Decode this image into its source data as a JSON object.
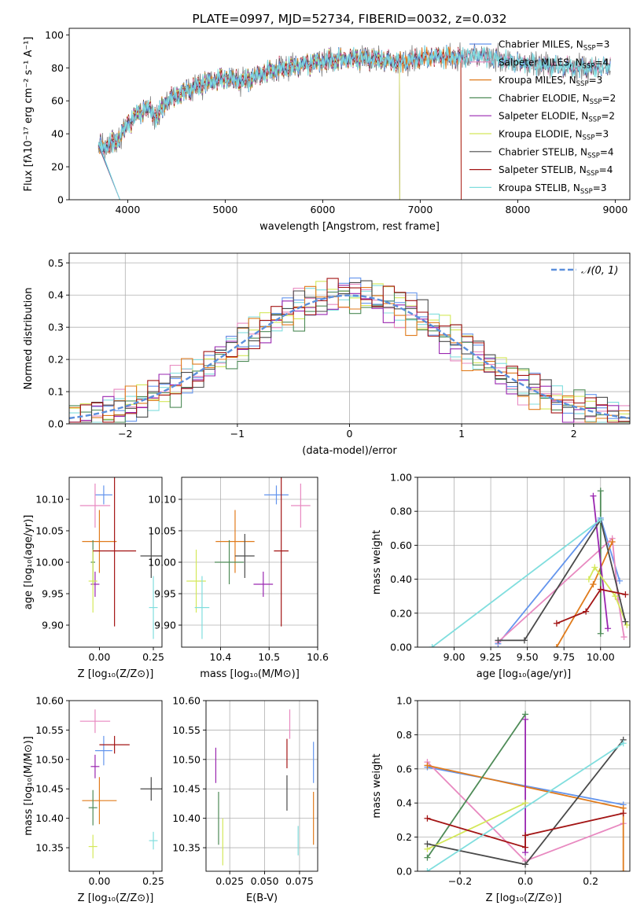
{
  "figure_title": "PLATE=0997, MJD=52734, FIBERID=0032, z=0.032",
  "colors": {
    "chabrier_miles": "#6495ed",
    "salpeter_miles": "#e889c0",
    "kroupa_miles": "#e07b1c",
    "chabrier_elodie": "#4e8b57",
    "salpeter_elodie": "#9a27b0",
    "kroupa_elodie": "#d4e85a",
    "chabrier_stelib": "#4a4a4a",
    "salpeter_stelib": "#a31515",
    "kroupa_stelib": "#80dede",
    "spectrum_data": "#808080",
    "normal_curve": "#5b8fdc"
  },
  "chart_data": [
    {
      "id": "spectrum",
      "type": "line",
      "title": "PLATE=0997, MJD=52734, FIBERID=0032, z=0.032",
      "xlabel": "wavelength [Angstrom, rest frame]",
      "ylabel": "Flux [fλ10⁻¹⁷ erg cm⁻² s⁻¹ A⁻¹]",
      "xlim": [
        3400,
        9150
      ],
      "ylim": [
        0,
        104
      ],
      "xticks": [
        4000,
        5000,
        6000,
        7000,
        8000,
        9000
      ],
      "yticks": [
        0,
        20,
        40,
        60,
        80,
        100
      ],
      "grid": false,
      "legend_position": "top-right",
      "continuum": {
        "x": [
          3700,
          3800,
          3900,
          4000,
          4100,
          4200,
          4300,
          4400,
          4600,
          4800,
          5000,
          5200,
          5400,
          5600,
          5800,
          6000,
          6200,
          6400,
          6600,
          6800,
          7000,
          7200,
          7400,
          7600,
          7800,
          8000,
          8200,
          8400,
          8600,
          8800,
          8950
        ],
        "y": [
          32,
          33,
          36,
          46,
          52,
          56,
          50,
          60,
          66,
          71,
          74,
          72,
          77,
          80,
          82,
          84,
          85,
          86,
          85,
          83,
          86,
          87,
          86,
          88,
          85,
          83,
          82,
          81,
          80,
          80,
          81
        ]
      },
      "series": [
        {
          "name": "Chabrier MILES, N_SSP=3",
          "color_key": "chabrier_miles",
          "end_x": 8950
        },
        {
          "name": "Salpeter MILES, N_SSP=4",
          "color_key": "salpeter_miles",
          "end_x": 8950
        },
        {
          "name": "Kroupa MILES, N_SSP=3",
          "color_key": "kroupa_miles",
          "end_x": 7420
        },
        {
          "name": "Chabrier ELODIE, N_SSP=2",
          "color_key": "chabrier_elodie",
          "end_x": 6790
        },
        {
          "name": "Salpeter ELODIE, N_SSP=2",
          "color_key": "salpeter_elodie",
          "end_x": 6790
        },
        {
          "name": "Kroupa ELODIE, N_SSP=3",
          "color_key": "kroupa_elodie",
          "end_x": 6790
        },
        {
          "name": "Chabrier STELIB, N_SSP=4",
          "color_key": "chabrier_stelib",
          "end_x": 8950
        },
        {
          "name": "Salpeter STELIB, N_SSP=4",
          "color_key": "salpeter_stelib",
          "end_x": 7420
        },
        {
          "name": "Kroupa STELIB, N_SSP=3",
          "color_key": "kroupa_stelib",
          "end_x": 8950
        }
      ]
    },
    {
      "id": "residuals",
      "type": "line",
      "title": "",
      "xlabel": "(data-model)/error",
      "ylabel": "Normed distribution",
      "xlim": [
        -2.5,
        2.5
      ],
      "ylim": [
        0,
        0.53
      ],
      "xticks": [
        -2,
        -1,
        0,
        1,
        2
      ],
      "yticks": [
        0.0,
        0.1,
        0.2,
        0.3,
        0.4,
        0.5
      ],
      "grid": true,
      "legend_position": "top-right",
      "legend_label": "𝒩(0, 1)",
      "bin_width": 0.1,
      "normal_curve": {
        "mean": 0,
        "sigma": 1
      }
    },
    {
      "id": "age_vs_z",
      "type": "scatter",
      "title": "",
      "xlabel": "Z [log₁₀(Z/Z⊙)]",
      "ylabel": "age  [log₁₀(age/yr)]",
      "xlim": [
        -0.14,
        0.29
      ],
      "ylim": [
        9.865,
        10.135
      ],
      "xticks": [
        0.0,
        0.25
      ],
      "yticks": [
        9.9,
        9.95,
        10.0,
        10.05,
        10.1
      ],
      "grid": false,
      "points": [
        {
          "color_key": "chabrier_miles",
          "x": 0.02,
          "y": 10.107,
          "xerr": 0.04,
          "yerr": 0.015
        },
        {
          "color_key": "salpeter_miles",
          "x": -0.02,
          "y": 10.09,
          "xerr": 0.07,
          "yerr": 0.035
        },
        {
          "color_key": "kroupa_miles",
          "x": 0.0,
          "y": 10.033,
          "xerr": 0.08,
          "yerr": 0.05
        },
        {
          "color_key": "chabrier_elodie",
          "x": -0.03,
          "y": 10.0,
          "xerr": 0.01,
          "yerr": 0.035
        },
        {
          "color_key": "salpeter_elodie",
          "x": -0.02,
          "y": 9.965,
          "xerr": 0.02,
          "yerr": 0.02
        },
        {
          "color_key": "kroupa_elodie",
          "x": -0.03,
          "y": 9.97,
          "xerr": 0.02,
          "yerr": 0.05
        },
        {
          "color_key": "chabrier_stelib",
          "x": 0.24,
          "y": 10.01,
          "xerr": 0.05,
          "yerr": 0.035
        },
        {
          "color_key": "salpeter_stelib",
          "x": 0.07,
          "y": 10.018,
          "xerr": 0.1,
          "yerr": 0.12
        },
        {
          "color_key": "kroupa_stelib",
          "x": 0.25,
          "y": 9.928,
          "xerr": 0.02,
          "yerr": 0.05
        }
      ]
    },
    {
      "id": "age_vs_mass",
      "type": "scatter",
      "title": "",
      "xlabel": "mass [log₁₀(M/M⊙)]",
      "ylabel": "",
      "xlim": [
        10.32,
        10.6
      ],
      "ylim": [
        9.865,
        10.135
      ],
      "xticks": [
        10.4,
        10.5,
        10.6
      ],
      "yticks": [
        9.9,
        9.95,
        10.0,
        10.05,
        10.1
      ],
      "grid": true,
      "points": [
        {
          "color_key": "chabrier_miles",
          "x": 10.515,
          "y": 10.107,
          "xerr": 0.025,
          "yerr": 0.015
        },
        {
          "color_key": "salpeter_miles",
          "x": 10.565,
          "y": 10.09,
          "xerr": 0.02,
          "yerr": 0.035
        },
        {
          "color_key": "kroupa_miles",
          "x": 10.43,
          "y": 10.033,
          "xerr": 0.04,
          "yerr": 0.05
        },
        {
          "color_key": "chabrier_elodie",
          "x": 10.418,
          "y": 10.0,
          "xerr": 0.03,
          "yerr": 0.035
        },
        {
          "color_key": "salpeter_elodie",
          "x": 10.488,
          "y": 9.965,
          "xerr": 0.02,
          "yerr": 0.02
        },
        {
          "color_key": "kroupa_elodie",
          "x": 10.35,
          "y": 9.97,
          "xerr": 0.02,
          "yerr": 0.05
        },
        {
          "color_key": "chabrier_stelib",
          "x": 10.45,
          "y": 10.01,
          "xerr": 0.02,
          "yerr": 0.035
        },
        {
          "color_key": "salpeter_stelib",
          "x": 10.525,
          "y": 10.018,
          "xerr": 0.015,
          "yerr": 0.12
        },
        {
          "color_key": "kroupa_stelib",
          "x": 10.362,
          "y": 9.928,
          "xerr": 0.015,
          "yerr": 0.05
        }
      ]
    },
    {
      "id": "mass_weight_vs_age",
      "type": "line",
      "title": "",
      "xlabel": "age  [log₁₀(age/yr)]",
      "ylabel": "mass weight",
      "xlim": [
        8.75,
        10.2
      ],
      "ylim": [
        0.0,
        1.0
      ],
      "xticks": [
        9.0,
        9.25,
        9.5,
        9.75,
        10.0
      ],
      "yticks": [
        0.0,
        0.2,
        0.4,
        0.6,
        0.8,
        1.0
      ],
      "grid": true,
      "series": [
        {
          "color_key": "chabrier_miles",
          "points": [
            [
              9.3,
              0.02
            ],
            [
              10.0,
              0.76
            ],
            [
              10.13,
              0.39
            ]
          ]
        },
        {
          "color_key": "salpeter_miles",
          "points": [
            [
              9.3,
              0.03
            ],
            [
              10.08,
              0.64
            ],
            [
              10.12,
              0.28
            ],
            [
              10.16,
              0.06
            ]
          ]
        },
        {
          "color_key": "kroupa_miles",
          "points": [
            [
              9.7,
              0.0
            ],
            [
              9.95,
              0.37
            ],
            [
              10.08,
              0.62
            ]
          ]
        },
        {
          "color_key": "chabrier_elodie",
          "points": [
            [
              10.0,
              0.08
            ],
            [
              10.0,
              0.92
            ]
          ]
        },
        {
          "color_key": "salpeter_elodie",
          "points": [
            [
              9.95,
              0.89
            ],
            [
              10.05,
              0.11
            ]
          ]
        },
        {
          "color_key": "kroupa_elodie",
          "points": [
            [
              9.92,
              0.4
            ],
            [
              9.96,
              0.47
            ],
            [
              10.1,
              0.3
            ],
            [
              10.18,
              0.13
            ]
          ]
        },
        {
          "color_key": "chabrier_stelib",
          "points": [
            [
              9.3,
              0.04
            ],
            [
              9.48,
              0.04
            ],
            [
              10.0,
              0.75
            ],
            [
              10.17,
              0.15
            ]
          ]
        },
        {
          "color_key": "salpeter_stelib",
          "points": [
            [
              9.7,
              0.14
            ],
            [
              9.9,
              0.21
            ],
            [
              10.0,
              0.34
            ],
            [
              10.17,
              0.31
            ]
          ]
        },
        {
          "color_key": "kroupa_stelib",
          "points": [
            [
              8.85,
              0.0
            ],
            [
              10.0,
              0.75
            ]
          ]
        }
      ]
    },
    {
      "id": "mass_vs_z",
      "type": "scatter",
      "title": "",
      "xlabel": "Z [log₁₀(Z/Z⊙)]",
      "ylabel": "mass [log₁₀(M/M⊙)]",
      "xlim": [
        -0.14,
        0.29
      ],
      "ylim": [
        10.31,
        10.6
      ],
      "xticks": [
        0.0,
        0.25
      ],
      "yticks": [
        10.35,
        10.4,
        10.45,
        10.5,
        10.55,
        10.6
      ],
      "grid": false,
      "points": [
        {
          "color_key": "chabrier_miles",
          "x": 0.02,
          "y": 10.515,
          "xerr": 0.04,
          "yerr": 0.025
        },
        {
          "color_key": "salpeter_miles",
          "x": -0.02,
          "y": 10.565,
          "xerr": 0.07,
          "yerr": 0.02
        },
        {
          "color_key": "kroupa_miles",
          "x": 0.0,
          "y": 10.43,
          "xerr": 0.08,
          "yerr": 0.04
        },
        {
          "color_key": "chabrier_elodie",
          "x": -0.03,
          "y": 10.418,
          "xerr": 0.02,
          "yerr": 0.03
        },
        {
          "color_key": "salpeter_elodie",
          "x": -0.02,
          "y": 10.488,
          "xerr": 0.02,
          "yerr": 0.02
        },
        {
          "color_key": "kroupa_elodie",
          "x": -0.03,
          "y": 10.352,
          "xerr": 0.02,
          "yerr": 0.02
        },
        {
          "color_key": "chabrier_stelib",
          "x": 0.24,
          "y": 10.45,
          "xerr": 0.05,
          "yerr": 0.02
        },
        {
          "color_key": "salpeter_stelib",
          "x": 0.07,
          "y": 10.525,
          "xerr": 0.07,
          "yerr": 0.015
        },
        {
          "color_key": "kroupa_stelib",
          "x": 0.25,
          "y": 10.362,
          "xerr": 0.02,
          "yerr": 0.015
        }
      ]
    },
    {
      "id": "mass_vs_ebv",
      "type": "scatter",
      "title": "",
      "xlabel": "E(B-V)",
      "ylabel": "",
      "xlim": [
        0.008,
        0.088
      ],
      "ylim": [
        10.31,
        10.6
      ],
      "xticks": [
        0.025,
        0.05,
        0.075
      ],
      "yticks": [
        10.35,
        10.4,
        10.45,
        10.5,
        10.55,
        10.6
      ],
      "grid": true,
      "points": [
        {
          "color_key": "chabrier_miles",
          "x": 0.085,
          "y": 10.495,
          "xerr": 0,
          "yerr": 0.035
        },
        {
          "color_key": "salpeter_miles",
          "x": 0.068,
          "y": 10.56,
          "xerr": 0,
          "yerr": 0.025
        },
        {
          "color_key": "kroupa_miles",
          "x": 0.085,
          "y": 10.4,
          "xerr": 0,
          "yerr": 0.045
        },
        {
          "color_key": "chabrier_elodie",
          "x": 0.017,
          "y": 10.4,
          "xerr": 0,
          "yerr": 0.045
        },
        {
          "color_key": "salpeter_elodie",
          "x": 0.015,
          "y": 10.49,
          "xerr": 0,
          "yerr": 0.03
        },
        {
          "color_key": "kroupa_elodie",
          "x": 0.02,
          "y": 10.36,
          "xerr": 0,
          "yerr": 0.04
        },
        {
          "color_key": "chabrier_stelib",
          "x": 0.066,
          "y": 10.443,
          "xerr": 0,
          "yerr": 0.03
        },
        {
          "color_key": "salpeter_stelib",
          "x": 0.066,
          "y": 10.51,
          "xerr": 0,
          "yerr": 0.025
        },
        {
          "color_key": "kroupa_stelib",
          "x": 0.074,
          "y": 10.362,
          "xerr": 0,
          "yerr": 0.025
        }
      ]
    },
    {
      "id": "mass_weight_vs_z",
      "type": "line",
      "title": "",
      "xlabel": "Z [log₁₀(Z/Z⊙)]",
      "ylabel": "mass weight",
      "xlim": [
        -0.33,
        0.32
      ],
      "ylim": [
        0.0,
        1.0
      ],
      "xticks": [
        -0.2,
        0.0,
        0.2
      ],
      "yticks": [
        0.0,
        0.2,
        0.4,
        0.6,
        0.8,
        1.0
      ],
      "grid": true,
      "series": [
        {
          "color_key": "chabrier_miles",
          "points": [
            [
              -0.3,
              0.61
            ],
            [
              0.3,
              0.39
            ]
          ]
        },
        {
          "color_key": "salpeter_miles",
          "points": [
            [
              -0.3,
              0.64
            ],
            [
              0.0,
              0.06
            ],
            [
              0.3,
              0.28
            ]
          ]
        },
        {
          "color_key": "kroupa_miles",
          "points": [
            [
              -0.3,
              0.62
            ],
            [
              0.3,
              0.37
            ],
            [
              0.3,
              0.0
            ]
          ]
        },
        {
          "color_key": "chabrier_elodie",
          "points": [
            [
              -0.3,
              0.08
            ],
            [
              0.0,
              0.92
            ]
          ]
        },
        {
          "color_key": "salpeter_elodie",
          "points": [
            [
              0.0,
              0.89
            ],
            [
              0.0,
              0.11
            ]
          ]
        },
        {
          "color_key": "kroupa_elodie",
          "points": [
            [
              -0.3,
              0.13
            ],
            [
              0.0,
              0.4
            ]
          ]
        },
        {
          "color_key": "chabrier_stelib",
          "points": [
            [
              -0.3,
              0.16
            ],
            [
              0.0,
              0.04
            ],
            [
              0.3,
              0.77
            ]
          ]
        },
        {
          "color_key": "salpeter_stelib",
          "points": [
            [
              -0.3,
              0.31
            ],
            [
              0.0,
              0.14
            ],
            [
              0.0,
              0.21
            ],
            [
              0.3,
              0.34
            ]
          ]
        },
        {
          "color_key": "kroupa_stelib",
          "points": [
            [
              -0.3,
              0.0
            ],
            [
              0.3,
              0.75
            ]
          ]
        }
      ]
    }
  ]
}
